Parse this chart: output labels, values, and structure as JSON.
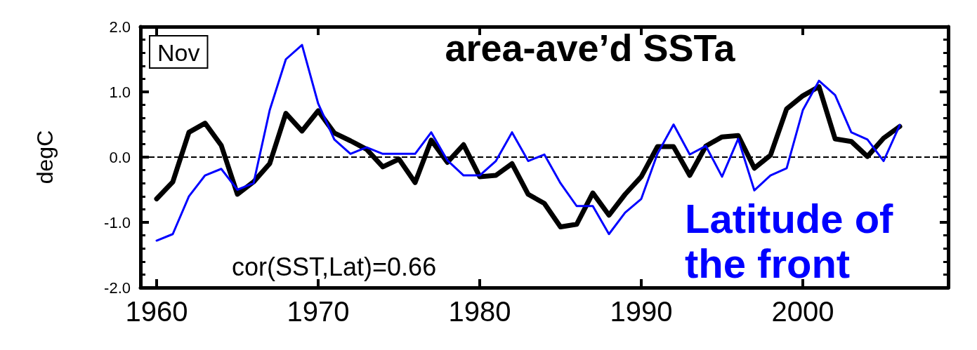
{
  "chart_data": {
    "type": "line",
    "title": "area-ave’d SSTa",
    "ylabel": "degC",
    "x": [
      1960,
      1961,
      1962,
      1963,
      1964,
      1965,
      1966,
      1967,
      1968,
      1969,
      1970,
      1971,
      1972,
      1973,
      1974,
      1975,
      1976,
      1977,
      1978,
      1979,
      1980,
      1981,
      1982,
      1983,
      1984,
      1985,
      1986,
      1987,
      1988,
      1989,
      1990,
      1991,
      1992,
      1993,
      1994,
      1995,
      1996,
      1997,
      1998,
      1999,
      2000,
      2001,
      2002,
      2003,
      2004,
      2005,
      2006
    ],
    "series": [
      {
        "color": "#000000",
        "values": [
          -0.64,
          -0.38,
          0.38,
          0.52,
          0.18,
          -0.57,
          -0.38,
          -0.1,
          0.67,
          0.4,
          0.71,
          0.37,
          0.25,
          0.12,
          -0.15,
          -0.03,
          -0.39,
          0.26,
          -0.08,
          0.19,
          -0.3,
          -0.28,
          -0.1,
          -0.57,
          -0.71,
          -1.07,
          -1.03,
          -0.55,
          -0.89,
          -0.57,
          -0.3,
          0.16,
          0.16,
          -0.28,
          0.17,
          0.31,
          0.33,
          -0.17,
          0.03,
          0.74,
          0.94,
          1.08,
          0.28,
          0.24,
          0.01,
          0.29,
          0.47
        ]
      },
      {
        "name": "Latitude of the front",
        "color": "#0000ff",
        "values": [
          -1.28,
          -1.18,
          -0.6,
          -0.28,
          -0.18,
          -0.5,
          -0.4,
          0.72,
          1.5,
          1.72,
          0.82,
          0.27,
          0.05,
          0.15,
          0.05,
          0.05,
          0.05,
          0.38,
          -0.05,
          -0.28,
          -0.28,
          -0.06,
          0.38,
          -0.06,
          0.04,
          -0.4,
          -0.75,
          -0.75,
          -1.18,
          -0.85,
          -0.64,
          0.05,
          0.5,
          0.04,
          0.17,
          -0.3,
          0.28,
          -0.51,
          -0.28,
          -0.17,
          0.72,
          1.17,
          0.95,
          0.38,
          0.27,
          -0.06,
          0.49
        ]
      }
    ],
    "xlim": [
      1959,
      2009
    ],
    "xticks": [
      1960,
      1970,
      1980,
      1990,
      2000
    ],
    "ylim": [
      -2,
      2
    ],
    "yticks": [
      {
        "value": -2,
        "label": "-2.0"
      },
      {
        "value": -1,
        "label": "-1.0"
      },
      {
        "value": 0,
        "label": "0.0"
      },
      {
        "value": 1,
        "label": "1.0"
      },
      {
        "value": 2,
        "label": "2.0"
      }
    ],
    "ref_lines": [
      {
        "axis": "y",
        "value": 0,
        "color": "#000000",
        "line_style": "dashed"
      }
    ],
    "annotations": [
      "Nov",
      "cor(SST,Lat)=0.66"
    ],
    "grid": false,
    "marker": "none",
    "line_style": "solid",
    "legend": false
  }
}
